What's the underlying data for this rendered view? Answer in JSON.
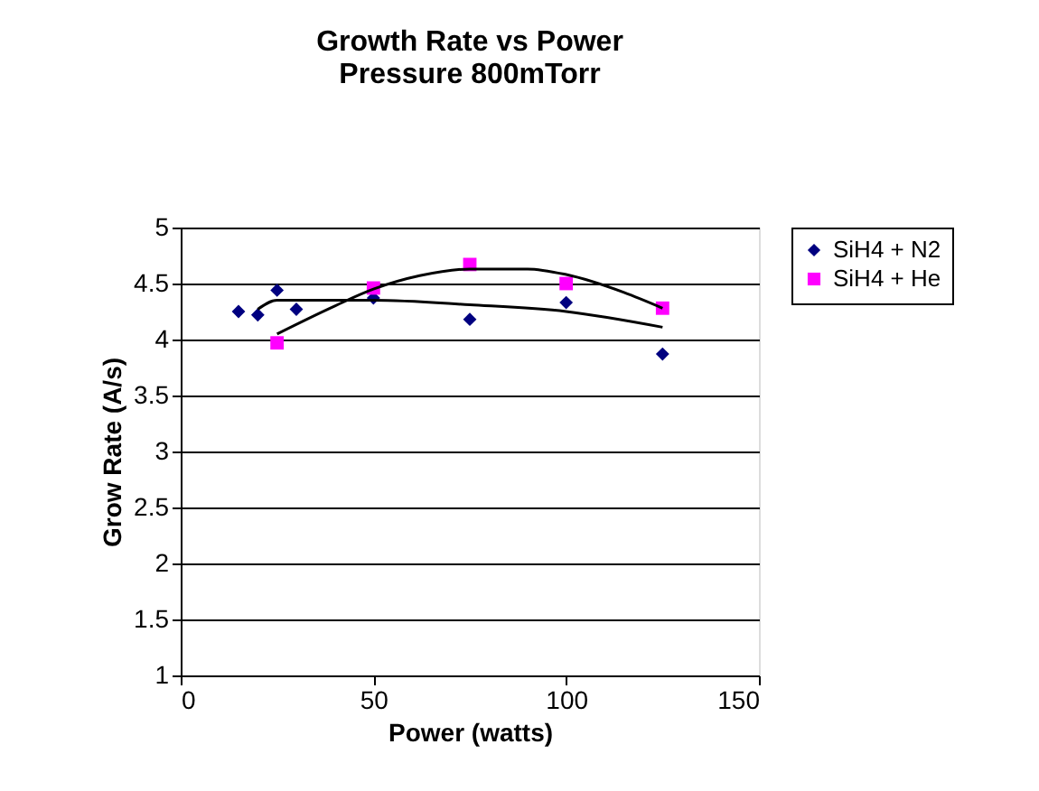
{
  "chart_data": {
    "type": "scatter",
    "title": [
      "Growth Rate vs Power",
      "Pressure 800mTorr"
    ],
    "xlabel": "Power (watts)",
    "ylabel": "Grow Rate (A/s)",
    "xlim": [
      0,
      150
    ],
    "xticks": [
      0,
      50,
      100,
      150
    ],
    "ylim": [
      1,
      5
    ],
    "yticks": [
      1,
      1.5,
      2,
      2.5,
      3,
      3.5,
      4,
      4.5,
      5
    ],
    "grid": "y",
    "legend": "right",
    "series": [
      {
        "name": "SiH4 + N2",
        "color": "#000080",
        "marker": "diamond",
        "x": [
          15,
          20,
          25,
          30,
          50,
          75,
          100,
          125
        ],
        "values": [
          4.25,
          4.22,
          4.44,
          4.27,
          4.37,
          4.18,
          4.33,
          3.87
        ]
      },
      {
        "name": "SiH4 + He",
        "color": "#ff00ff",
        "marker": "square",
        "x": [
          25,
          50,
          75,
          100,
          125
        ],
        "values": [
          3.97,
          4.46,
          4.67,
          4.5,
          4.28
        ]
      },
      {
        "type": "line",
        "color": "#000000",
        "marker": "none",
        "x": [
          20,
          25,
          50,
          75,
          100,
          125
        ],
        "values": [
          4.27,
          4.35,
          4.35,
          4.31,
          4.25,
          4.11
        ]
      },
      {
        "type": "line",
        "color": "#000000",
        "marker": "none",
        "x": [
          25,
          40,
          50,
          62,
          75,
          90,
          100,
          115,
          125
        ],
        "values": [
          4.05,
          4.3,
          4.45,
          4.57,
          4.63,
          4.63,
          4.58,
          4.42,
          4.28
        ]
      }
    ]
  }
}
